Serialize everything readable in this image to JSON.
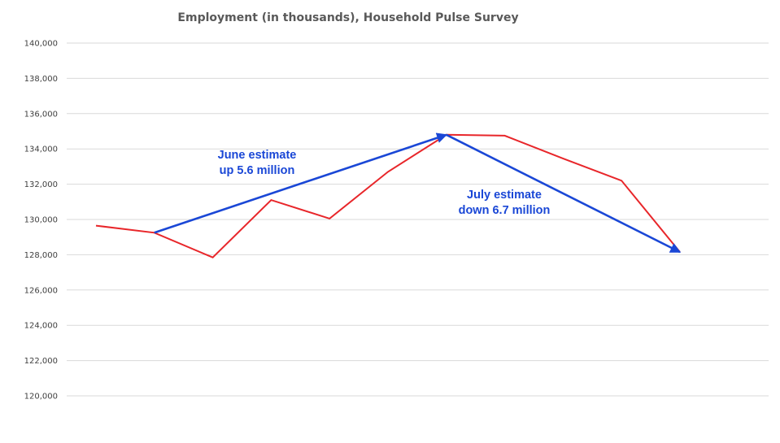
{
  "chart_data": {
    "type": "line",
    "title": "Employment (in thousands), Household Pulse Survey",
    "xlabel": "",
    "ylabel": "",
    "ylim": [
      120000,
      140000
    ],
    "yticks": [
      120000,
      122000,
      124000,
      126000,
      128000,
      130000,
      132000,
      134000,
      136000,
      138000,
      140000
    ],
    "ytick_labels": [
      "120,000",
      "122,000",
      "124,000",
      "126,000",
      "128,000",
      "130,000",
      "132,000",
      "134,000",
      "136,000",
      "138,000",
      "140,000"
    ],
    "grid": true,
    "legend": "none",
    "series": [
      {
        "color": "#e8262a",
        "values": [
          129650,
          129250,
          127850,
          131100,
          130050,
          132700,
          134800,
          134750,
          133450,
          132200,
          128150
        ]
      }
    ],
    "annotations": [
      {
        "lines": [
          "June estimate",
          "up 5.6 million"
        ],
        "color": "#1a47d6",
        "arrow_from": {
          "index": 1,
          "value": 129250
        },
        "arrow_to": {
          "index": 6,
          "value": 134800
        }
      },
      {
        "lines": [
          "July estimate",
          "down 6.7 million"
        ],
        "color": "#1a47d6",
        "arrow_from": {
          "index": 6,
          "value": 134800
        },
        "arrow_to": {
          "index": 10,
          "value": 128150
        }
      }
    ]
  }
}
